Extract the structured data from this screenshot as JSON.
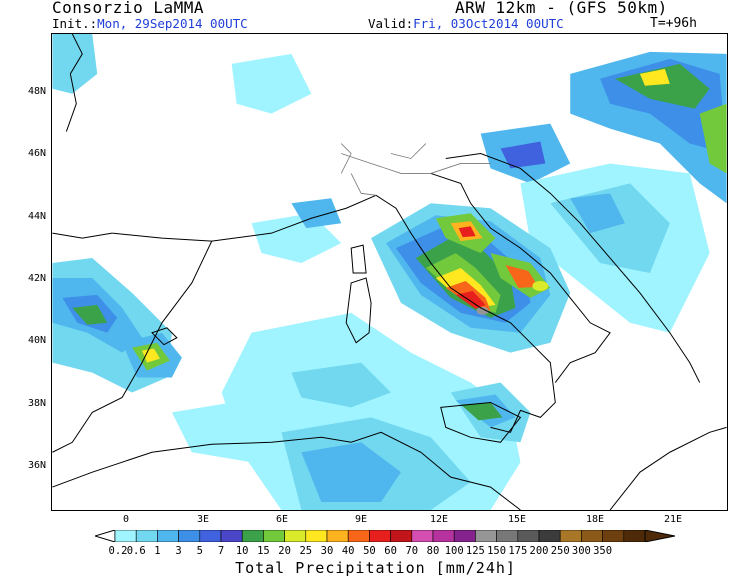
{
  "header": {
    "title_left": "Consorzio LaMMA",
    "title_right": "ARW 12km - (GFS 50km)",
    "init_label": "Init.:",
    "init_value": "Mon, 29Sep2014 00UTC",
    "valid_label": "Valid:",
    "valid_value": "Fri, 03Oct2014 00UTC",
    "forecast_step": "T=+96h"
  },
  "map": {
    "lat_labels": [
      "48N",
      "46N",
      "44N",
      "42N",
      "40N",
      "38N",
      "36N"
    ],
    "lon_labels": [
      "0",
      "3E",
      "6E",
      "9E",
      "12E",
      "15E",
      "18E",
      "21E"
    ]
  },
  "colorbar": {
    "title": "Total Precipitation [mm/24h]",
    "levels": [
      "0.2",
      "0.6",
      "1",
      "3",
      "5",
      "7",
      "10",
      "15",
      "20",
      "25",
      "30",
      "40",
      "50",
      "60",
      "70",
      "80",
      "100",
      "125",
      "150",
      "175",
      "200",
      "250",
      "300",
      "350"
    ],
    "colors": [
      "#9ff4ff",
      "#72d8f0",
      "#4fb7ee",
      "#3d8fe8",
      "#4162de",
      "#4a46c8",
      "#3ba24a",
      "#73c93c",
      "#d8ea2a",
      "#ffe81f",
      "#ffb31e",
      "#f8661a",
      "#e8201d",
      "#c0161a",
      "#d44fb0",
      "#b6339f",
      "#86228d",
      "#969696",
      "#787878",
      "#5a5a5a",
      "#3c3c3c",
      "#a87828",
      "#8c5a18",
      "#6e4010",
      "#4e2a08"
    ]
  }
}
